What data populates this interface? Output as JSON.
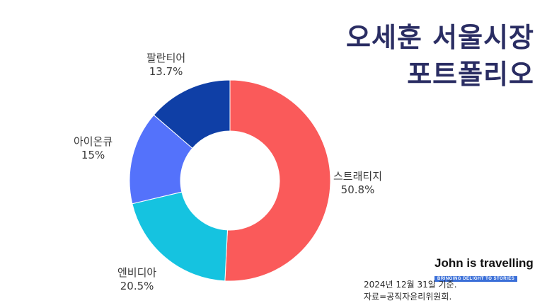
{
  "header": {
    "title_line1": "오세훈 서울시장",
    "title_line2": "포트폴리오"
  },
  "chart_data": {
    "type": "pie",
    "title": "오세훈 서울시장 포트폴리오",
    "categories": [
      "스트래티지",
      "엔비디아",
      "아이온큐",
      "팔란티어"
    ],
    "values": [
      50.8,
      20.5,
      15,
      13.7
    ],
    "value_labels": [
      "50.8%",
      "20.5%",
      "15%",
      "13.7%"
    ],
    "colors": [
      "#fa5a5a",
      "#15c3e0",
      "#5472fb",
      "#0f3fa6"
    ],
    "donut": true
  },
  "branding": {
    "name": "John is travelling",
    "tagline": "BRINGING DELIGHT TO STORIES"
  },
  "footnote": {
    "date": "2024년 12월 31일 기준.",
    "source": "자료=공직자윤리위원회."
  }
}
